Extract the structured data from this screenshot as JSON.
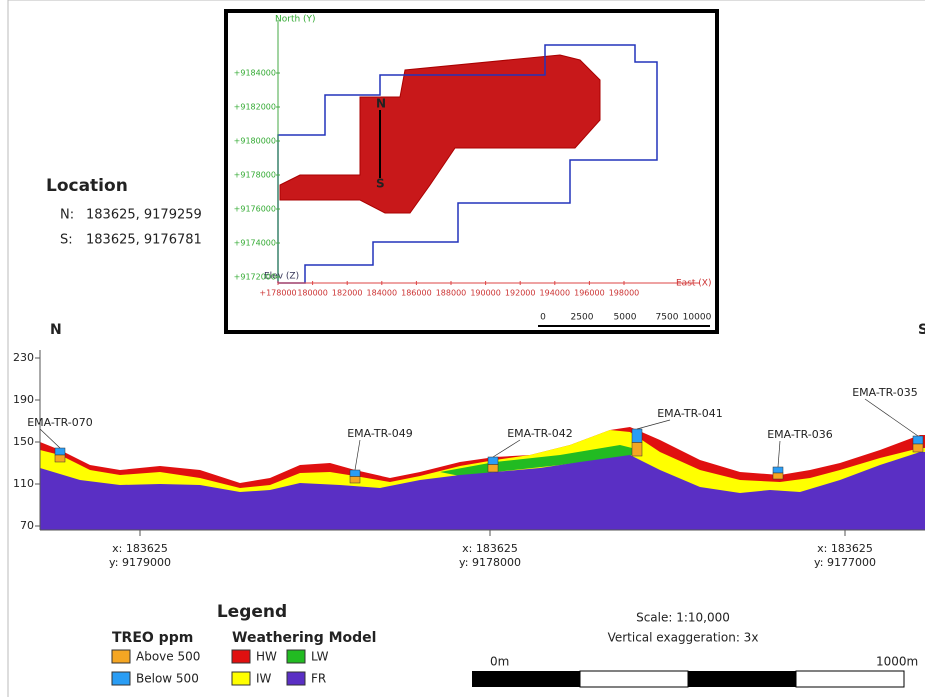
{
  "location": {
    "title": "Location",
    "n_label": "N:",
    "n_value": "183625, 9179259",
    "s_label": "S:",
    "s_value": "183625, 9176781"
  },
  "map": {
    "north_axis": "North (Y)",
    "east_axis": "East (X)",
    "elev_axis": "Elev (Z)",
    "n_marker": "N",
    "s_marker": "S",
    "y_labels": [
      "+9184000",
      "+9182000",
      "+9180000",
      "+9178000",
      "+9176000",
      "+9174000",
      "+9172000"
    ],
    "x_labels": [
      "+178000",
      "180000",
      "182000",
      "184000",
      "186000",
      "188000",
      "190000",
      "192000",
      "194000",
      "196000",
      "198000"
    ],
    "scale_labels": [
      "0",
      "2500",
      "5000",
      "7500",
      "10000"
    ]
  },
  "section": {
    "north": "N",
    "south": "S",
    "ylim": [
      70,
      230
    ],
    "yticks": [
      230,
      190,
      150,
      110,
      70
    ],
    "holes": [
      "EMA-TR-070",
      "EMA-TR-049",
      "EMA-TR-042",
      "EMA-TR-041",
      "EMA-TR-036",
      "EMA-TR-035"
    ],
    "coords": [
      {
        "x": "x: 183625",
        "y": "y: 9179000"
      },
      {
        "x": "x: 183625",
        "y": "y: 9178000"
      },
      {
        "x": "x: 183625",
        "y": "y: 9177000"
      }
    ]
  },
  "legend": {
    "title": "Legend",
    "treo_title": "TREO ppm",
    "above": "Above 500",
    "below": "Below 500",
    "weathering_title": "Weathering Model",
    "hw": "HW",
    "lw": "LW",
    "iw": "IW",
    "fr": "FR"
  },
  "scale": {
    "ratio": "Scale:  1:10,000",
    "exaggeration": "Vertical exaggeration: 3x",
    "start": "0m",
    "end": "1000m"
  }
}
